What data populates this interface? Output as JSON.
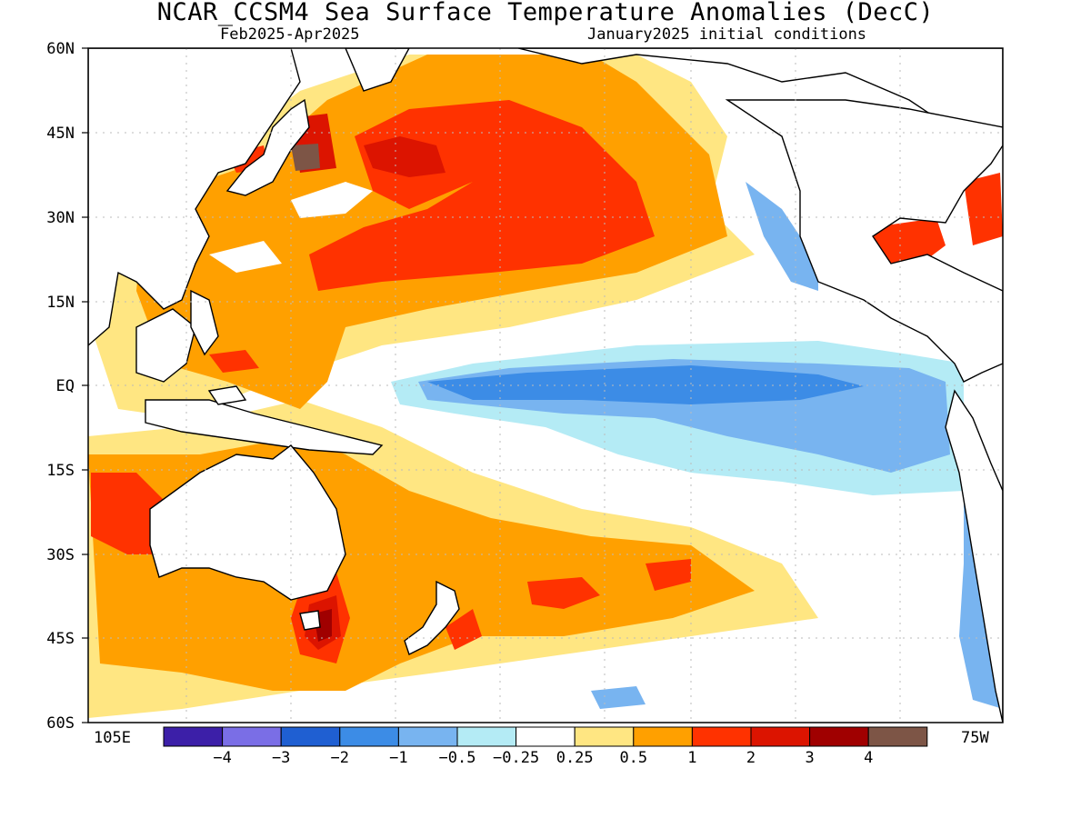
{
  "header": {
    "title": "NCAR_CCSM4 Sea Surface Temperature Anomalies (DecC)",
    "period": "Feb2025-Apr2025",
    "init": "January2025 initial conditions"
  },
  "axes": {
    "lat_labels": [
      "60N",
      "45N",
      "30N",
      "15N",
      "EQ",
      "15S",
      "30S",
      "45S",
      "60S"
    ],
    "lon_left": "105E",
    "lon_right": "75W"
  },
  "colorbar": {
    "colors": [
      "#3c1fa8",
      "#7a6ee6",
      "#1f5fd2",
      "#3c8ce6",
      "#78b4f0",
      "#b4ebf5",
      "#ffffff",
      "#ffe682",
      "#ffa000",
      "#ff3200",
      "#dc1400",
      "#a00000",
      "#7d5546"
    ],
    "labels": [
      "-4",
      "-3",
      "-2",
      "-1",
      "-0.5",
      "-0.25",
      "0.25",
      "0.5",
      "1",
      "2",
      "3",
      "4"
    ]
  },
  "legend_colors": {
    "land": "#ffffff",
    "coast": "#000000",
    "grid": "#bbbbbb"
  }
}
